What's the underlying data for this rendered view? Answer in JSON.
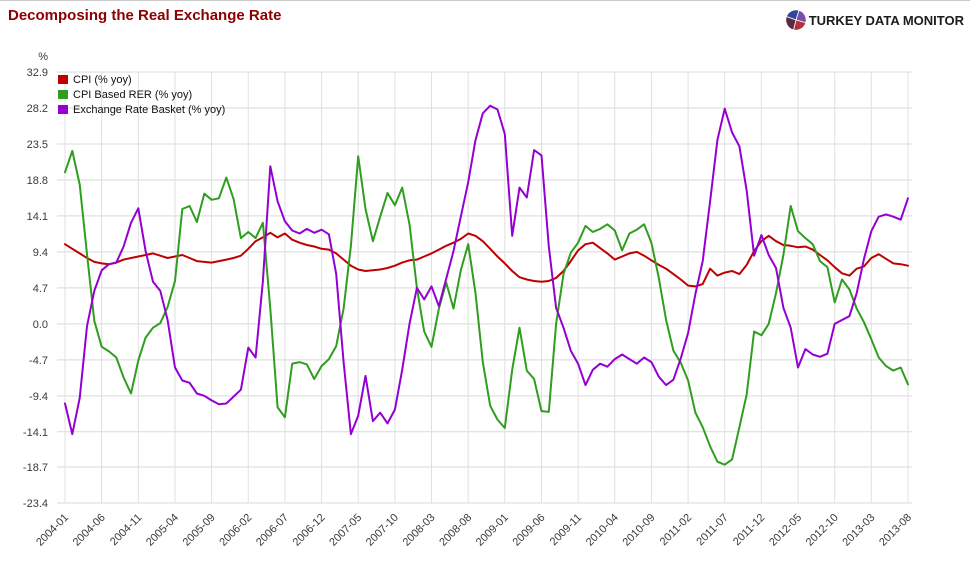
{
  "header": {
    "title": "Decomposing the Real Exchange Rate",
    "title_color": "#8b0000",
    "logo_text": "TURKEY DATA MONITOR",
    "logo_pie_colors": [
      "#31479c",
      "#7b4fa6",
      "#b2323c",
      "#5d2a46",
      "#8d9099"
    ]
  },
  "chart_data": {
    "type": "line",
    "title": "Decomposing the Real Exchange Rate",
    "ylabel": "%",
    "xlabel": "",
    "ylim": [
      -23.4,
      32.9
    ],
    "grid": true,
    "legend_position": "top-left",
    "y_ticks": [
      "32.9",
      "28.2",
      "23.5",
      "18.8",
      "14.1",
      "9.4",
      "4.7",
      "0.0",
      "-4.7",
      "-9.4",
      "-14.1",
      "-18.7",
      "-23.4"
    ],
    "x_tick_labels": [
      "2004-01",
      "2004-06",
      "2004-11",
      "2005-04",
      "2005-09",
      "2006-02",
      "2006-07",
      "2006-12",
      "2007-05",
      "2007-10",
      "2008-03",
      "2008-08",
      "2009-01",
      "2009-06",
      "2009-11",
      "2010-04",
      "2010-09",
      "2011-02",
      "2011-07",
      "2011-12",
      "2012-05",
      "2012-10",
      "2013-03",
      "2013-08"
    ],
    "tick_every": 5,
    "x_start": "2004-01",
    "x_end": "2013-08",
    "axis_text_color": "#3a3a3a",
    "gridline_color": "#d9d9d9",
    "series": [
      {
        "name": "CPI (% yoy)",
        "color": "#c00000",
        "values": [
          10.4,
          9.8,
          9.2,
          8.6,
          8.1,
          7.9,
          7.8,
          8.0,
          8.4,
          8.6,
          8.8,
          9.0,
          9.2,
          8.9,
          8.6,
          8.8,
          9.0,
          8.6,
          8.2,
          8.1,
          8.0,
          8.2,
          8.4,
          8.6,
          8.9,
          9.8,
          10.8,
          11.3,
          11.9,
          11.3,
          11.8,
          11.0,
          10.6,
          10.3,
          10.1,
          9.8,
          9.7,
          9.2,
          8.4,
          7.6,
          7.1,
          6.9,
          7.0,
          7.1,
          7.3,
          7.6,
          8.0,
          8.3,
          8.4,
          8.8,
          9.2,
          9.7,
          10.2,
          10.6,
          11.1,
          11.8,
          11.5,
          10.8,
          9.8,
          8.8,
          7.9,
          6.9,
          6.1,
          5.8,
          5.6,
          5.5,
          5.6,
          6.0,
          6.9,
          8.2,
          9.6,
          10.4,
          10.6,
          9.9,
          9.2,
          8.4,
          8.8,
          9.2,
          9.4,
          8.9,
          8.3,
          7.7,
          7.2,
          6.5,
          5.8,
          5.0,
          4.9,
          5.2,
          7.2,
          6.3,
          6.7,
          6.9,
          6.5,
          7.7,
          9.5,
          10.8,
          11.5,
          10.8,
          10.3,
          10.2,
          10.0,
          10.1,
          9.7,
          9.0,
          8.3,
          7.4,
          6.6,
          6.3,
          7.2,
          7.5,
          8.6,
          9.1,
          8.5,
          7.9,
          7.8,
          7.6
        ]
      },
      {
        "name": "CPI Based RER (% yoy)",
        "color": "#2f9e1f",
        "values": [
          19.8,
          22.6,
          18.2,
          9.1,
          0.4,
          -3.0,
          -3.6,
          -4.4,
          -7.0,
          -9.1,
          -4.8,
          -1.8,
          -0.5,
          0.1,
          2.2,
          5.6,
          15.0,
          15.4,
          13.3,
          17.0,
          16.2,
          16.4,
          19.1,
          16.3,
          11.2,
          12.0,
          11.2,
          13.2,
          2.0,
          -10.9,
          -12.2,
          -5.2,
          -5.0,
          -5.3,
          -7.2,
          -5.5,
          -4.6,
          -2.9,
          2.0,
          10.2,
          21.9,
          15.0,
          10.8,
          14.0,
          17.1,
          15.5,
          17.8,
          13.0,
          4.7,
          -1.0,
          -3.0,
          2.0,
          5.4,
          2.0,
          7.0,
          10.4,
          4.0,
          -5.0,
          -10.7,
          -12.5,
          -13.6,
          -6.0,
          -0.5,
          -6.1,
          -7.2,
          -11.4,
          -11.5,
          0.0,
          6.5,
          9.3,
          10.6,
          12.8,
          12.0,
          12.4,
          13.0,
          12.2,
          9.6,
          11.8,
          12.3,
          13.0,
          10.6,
          6.0,
          0.5,
          -3.5,
          -5.1,
          -7.4,
          -11.6,
          -13.5,
          -16.0,
          -18.0,
          -18.4,
          -17.7,
          -13.5,
          -9.2,
          -1.0,
          -1.5,
          0.0,
          4.0,
          9.0,
          15.4,
          12.1,
          11.2,
          10.4,
          8.2,
          7.4,
          2.8,
          5.8,
          4.5,
          2.0,
          0.2,
          -2.0,
          -4.4,
          -5.5,
          -6.1,
          -5.7,
          -7.9
        ]
      },
      {
        "name": "Exchange Rate Basket (% yoy)",
        "color": "#9400d3",
        "values": [
          -10.4,
          -14.4,
          -9.7,
          -0.3,
          4.3,
          7.0,
          7.8,
          8.0,
          10.1,
          13.2,
          15.1,
          9.5,
          5.5,
          4.3,
          0.5,
          -5.7,
          -7.4,
          -7.7,
          -9.1,
          -9.4,
          -10.0,
          -10.5,
          -10.4,
          -9.5,
          -8.6,
          -3.1,
          -4.4,
          5.6,
          20.6,
          16.0,
          13.4,
          12.2,
          11.8,
          12.4,
          11.9,
          12.3,
          11.7,
          6.5,
          -5.0,
          -14.4,
          -12.0,
          -6.8,
          -12.7,
          -11.6,
          -13.0,
          -11.2,
          -6.0,
          0.0,
          4.7,
          3.2,
          4.9,
          2.3,
          5.9,
          9.5,
          14.0,
          18.5,
          24.0,
          27.5,
          28.5,
          28.0,
          24.8,
          11.5,
          17.8,
          16.5,
          22.7,
          22.0,
          10.1,
          2.1,
          -0.5,
          -3.5,
          -5.2,
          -8.0,
          -6.0,
          -5.2,
          -5.6,
          -4.6,
          -4.0,
          -4.6,
          -5.2,
          -4.4,
          -5.0,
          -6.9,
          -8.0,
          -7.3,
          -4.5,
          -1.2,
          3.9,
          8.2,
          16.0,
          24.0,
          28.1,
          25.0,
          23.2,
          17.4,
          8.9,
          11.6,
          9.0,
          7.3,
          2.1,
          -0.5,
          -5.7,
          -3.3,
          -4.0,
          -4.3,
          -3.9,
          0.0,
          0.5,
          1.0,
          4.0,
          8.5,
          12.1,
          14.0,
          14.3,
          14.0,
          13.6,
          16.4
        ]
      }
    ]
  }
}
